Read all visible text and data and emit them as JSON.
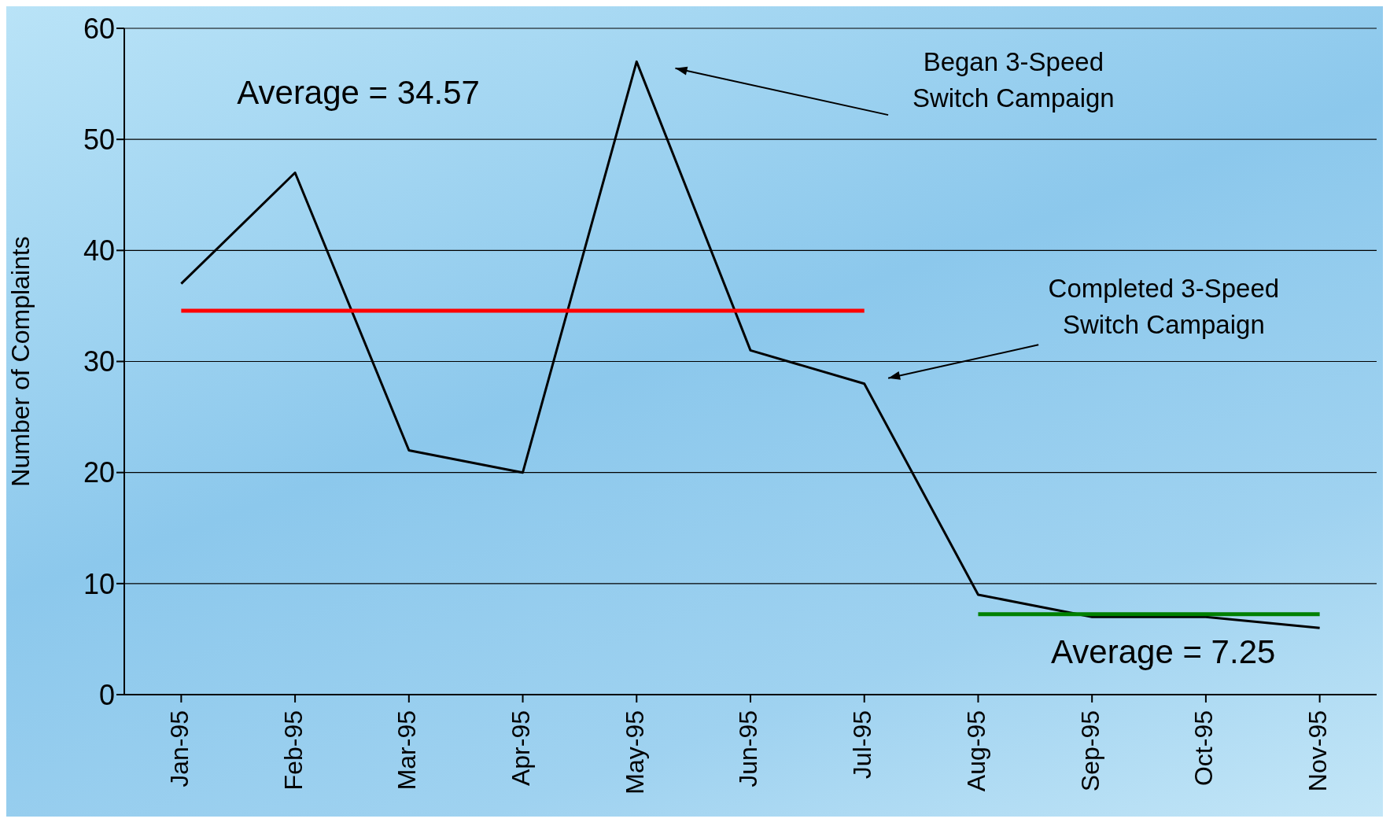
{
  "chart_data": {
    "type": "line",
    "ylabel": "Number of Complaints",
    "categories": [
      "Jan-95",
      "Feb-95",
      "Mar-95",
      "Apr-95",
      "May-95",
      "Jun-95",
      "Jul-95",
      "Aug-95",
      "Sep-95",
      "Oct-95",
      "Nov-95"
    ],
    "series": [
      {
        "color": "#000000",
        "values": [
          37,
          47,
          22,
          20,
          57,
          31,
          28,
          9,
          7,
          7,
          6
        ]
      },
      {
        "color": "#ff0000",
        "values": [
          34.57,
          34.57,
          34.57,
          34.57,
          34.57,
          34.57,
          34.57,
          null,
          null,
          null,
          null
        ]
      },
      {
        "color": "#008000",
        "values": [
          null,
          null,
          null,
          null,
          null,
          null,
          null,
          7.25,
          7.25,
          7.25,
          7.25
        ]
      }
    ],
    "ylim": [
      0,
      60
    ],
    "yticks": [
      0,
      10,
      20,
      30,
      40,
      50,
      60
    ],
    "grid": "y",
    "legend": false,
    "marker": "none",
    "line_style": "solid",
    "annotations": [
      "Average = 34.57",
      "Began 3-Speed Switch Campaign",
      "Completed 3-Speed Switch Campaign",
      "Average = 7.25"
    ]
  }
}
